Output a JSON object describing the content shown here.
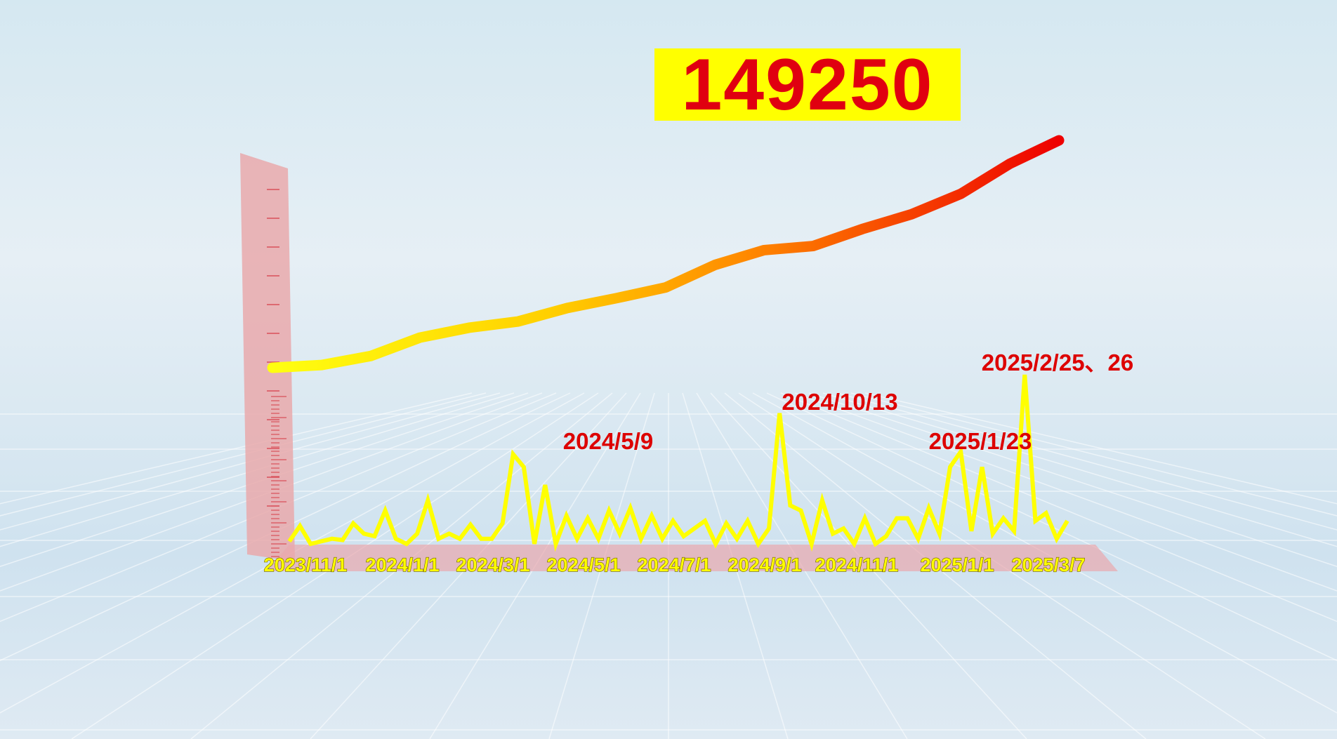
{
  "headline_total": "149250",
  "colors": {
    "total_box_bg": "#ffff00",
    "total_text": "#e00010",
    "daily_line": "#ffff00",
    "cumulative_start": "#ffee00",
    "cumulative_end": "#ee0000",
    "annotation": "#dd0000",
    "ruler": "#e8a0a4"
  },
  "chart_data": {
    "type": "line",
    "title": "",
    "xlabel": "",
    "ylabel": "",
    "grid": false,
    "x_tick_labels": [
      "2023/11/1",
      "2024/1/1",
      "2024/3/1",
      "2024/5/1",
      "2024/7/1",
      "2024/9/1",
      "2024/11/1",
      "2025/1/1",
      "2025/3/7"
    ],
    "annotations": [
      "2024/5/9",
      "2024/10/13",
      "2025/1/23",
      "2025/2/25、26"
    ],
    "series": [
      {
        "kind": "cumulative",
        "end_value": 149250,
        "values": [
          66300,
          67300,
          70600,
          77300,
          80900,
          83200,
          88100,
          91700,
          95600,
          103800,
          109200,
          110700,
          116900,
          122300,
          129700,
          140700,
          149250
        ]
      },
      {
        "kind": "daily",
        "values": [
          10,
          70,
          0,
          10,
          20,
          15,
          80,
          40,
          30,
          130,
          20,
          0,
          40,
          170,
          20,
          40,
          20,
          75,
          20,
          20,
          80,
          350,
          300,
          0,
          230,
          0,
          110,
          20,
          100,
          20,
          130,
          40,
          140,
          20,
          110,
          20,
          90,
          30,
          60,
          90,
          0,
          80,
          20,
          90,
          0,
          60,
          510,
          150,
          130,
          0,
          170,
          40,
          60,
          0,
          100,
          0,
          30,
          100,
          100,
          20,
          140,
          40,
          300,
          360,
          50,
          300,
          40,
          100,
          50,
          660,
          90,
          120,
          20,
          90
        ]
      }
    ]
  }
}
